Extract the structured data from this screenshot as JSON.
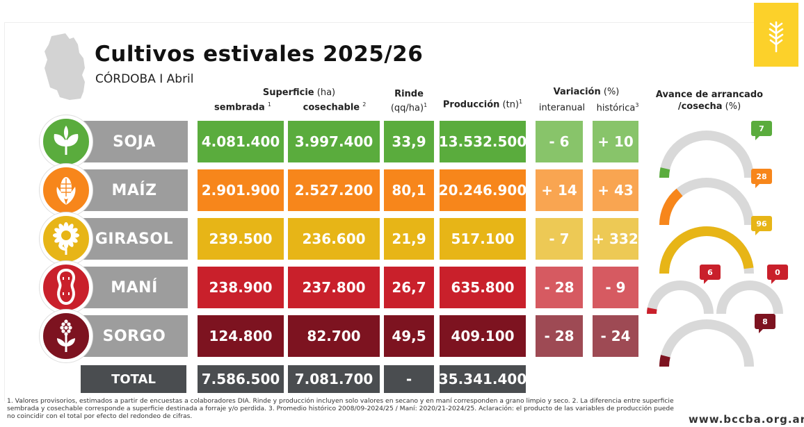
{
  "header": {
    "title": "Cultivos estivales 2025/26",
    "subtitle": "CÓRDOBA I Abril"
  },
  "columns": {
    "superficie": "Superficie",
    "superficie_unit": "(ha)",
    "sembrada": "sembrada",
    "sembrada_note": "1",
    "cosechable": "cosechable",
    "cosechable_note": "2",
    "rinde": "Rinde",
    "rinde_unit": "(qq/ha)",
    "rinde_note": "1",
    "produccion": "Producción",
    "produccion_unit": "(tn)",
    "produccion_note": "1",
    "variacion": "Variación",
    "variacion_unit": "(%)",
    "interanual": "interanual",
    "historica": "histórica",
    "historica_note": "3",
    "avance_1": "Avance de arrancado",
    "avance_2": "/cosecha",
    "avance_unit": "(%)"
  },
  "rows": [
    {
      "crop": "SOJA",
      "sembrada": "4.081.400",
      "cosechable": "3.997.400",
      "rinde": "33,9",
      "produccion": "13.532.500",
      "interanual": "- 6",
      "historica": "+ 10",
      "avance": "7",
      "color": "#5aac3d",
      "color_light": "#88c46a",
      "icon": "soy-plant-icon"
    },
    {
      "crop": "MAÍZ",
      "sembrada": "2.901.900",
      "cosechable": "2.527.200",
      "rinde": "80,1",
      "produccion": "20.246.900",
      "interanual": "+ 14",
      "historica": "+ 43",
      "avance": "28",
      "color": "#f7861b",
      "color_light": "#f9a551",
      "icon": "corn-icon"
    },
    {
      "crop": "GIRASOL",
      "sembrada": "239.500",
      "cosechable": "236.600",
      "rinde": "21,9",
      "produccion": "517.100",
      "interanual": "- 7",
      "historica": "+ 332",
      "avance": "96",
      "color": "#e7b517",
      "color_light": "#edc955",
      "icon": "sunflower-icon"
    },
    {
      "crop": "MANÍ",
      "sembrada": "238.900",
      "cosechable": "237.800",
      "rinde": "26,7",
      "produccion": "635.800",
      "interanual": "- 28",
      "historica": "- 9",
      "avance": "6",
      "color": "#c9202b",
      "color_light": "#d65a61",
      "icon": "peanut-icon"
    },
    {
      "crop": "SORGO",
      "sembrada": "124.800",
      "cosechable": "82.700",
      "rinde": "49,5",
      "produccion": "409.100",
      "interanual": "- 28",
      "historica": "- 24",
      "avance": "8",
      "color": "#7d1320",
      "color_light": "#9e4a54",
      "icon": "sorghum-icon"
    }
  ],
  "extra_gauge": {
    "value": "0",
    "color": "#c9202b"
  },
  "total": {
    "label": "TOTAL",
    "sembrada": "7.586.500",
    "cosechable": "7.081.700",
    "rinde": "-",
    "produccion": "35.341.400"
  },
  "footnote": "1. Valores provisorios, estimados a partir de encuestas a colaboradores DIA. Rinde y producción incluyen solo valores en secano y en maní corresponden a grano limpio y seco. 2. La diferencia entre superficie sembrada y cosechable corresponde a superficie destinada a forraje y/o perdida. 3. Promedio histórico 2008/09-2024/25 / Maní: 2020/21-2024/25. Aclaración: el producto de las variables de producción puede no coincidir con el total por efecto del redondeo de cifras.",
  "website": "www.bccba.org.ar",
  "chart_data": {
    "type": "table",
    "title": "Cultivos estivales 2025/26",
    "subtitle": "CÓRDOBA I Abril",
    "columns": [
      "Superficie sembrada (ha)",
      "Superficie cosechable (ha)",
      "Rinde (qq/ha)",
      "Producción (tn)",
      "Variación interanual (%)",
      "Variación histórica (%)",
      "Avance de arrancado /cosecha (%)"
    ],
    "categories": [
      "SOJA",
      "MAÍZ",
      "GIRASOL",
      "MANÍ",
      "SORGO"
    ],
    "series": [
      {
        "name": "sembrada",
        "values": [
          4081400,
          2901900,
          239500,
          238900,
          124800
        ]
      },
      {
        "name": "cosechable",
        "values": [
          3997400,
          2527200,
          236600,
          237800,
          82700
        ]
      },
      {
        "name": "rinde",
        "values": [
          33.9,
          80.1,
          21.9,
          26.7,
          49.5
        ]
      },
      {
        "name": "produccion",
        "values": [
          13532500,
          20246900,
          517100,
          635800,
          409100
        ]
      },
      {
        "name": "interanual",
        "values": [
          -6,
          14,
          -7,
          -28,
          -28
        ]
      },
      {
        "name": "historica",
        "values": [
          10,
          43,
          332,
          -9,
          -24
        ]
      },
      {
        "name": "avance",
        "values": [
          7,
          28,
          96,
          6,
          8
        ]
      }
    ],
    "extra_avance_value": 0,
    "totals": {
      "sembrada": 7586500,
      "cosechable": 7081700,
      "produccion": 35341400
    }
  }
}
